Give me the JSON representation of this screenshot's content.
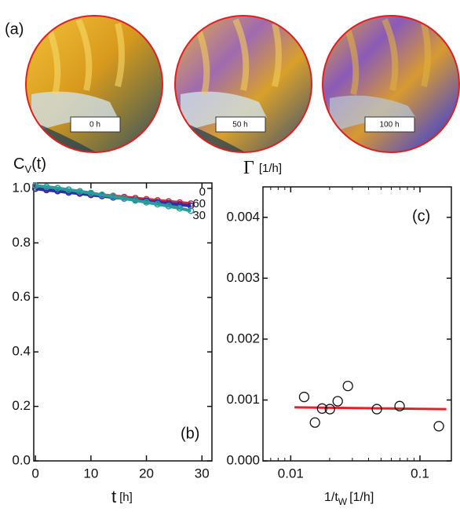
{
  "images": {
    "panel_label": "(a)",
    "captions": [
      "0 h",
      "50 h",
      "100 h"
    ]
  },
  "chart_data": [
    {
      "type": "line",
      "panel_label": "(b)",
      "ylabel": {
        "main": "C",
        "sub": "V",
        "rest": "(t)"
      },
      "xlabel": {
        "main": "t",
        "unit": "[h]"
      },
      "x": [
        0,
        2,
        4,
        6,
        8,
        10,
        12,
        14,
        16,
        18,
        20,
        22,
        24,
        26,
        28
      ],
      "series": [
        {
          "name": "0",
          "color": "#d7263d",
          "values": [
            1.0,
            0.996,
            0.992,
            0.988,
            0.984,
            0.98,
            0.976,
            0.972,
            0.968,
            0.964,
            0.96,
            0.956,
            0.952,
            0.948,
            0.944
          ]
        },
        {
          "name": "60",
          "color": "#2b2fa8",
          "values": [
            0.999,
            0.994,
            0.99,
            0.985,
            0.981,
            0.976,
            0.972,
            0.967,
            0.963,
            0.958,
            0.954,
            0.949,
            0.945,
            0.94,
            0.936
          ]
        },
        {
          "name": "30",
          "color": "#2a9d9a",
          "values": [
            1.01,
            1.006,
            1.001,
            0.995,
            0.989,
            0.983,
            0.976,
            0.97,
            0.963,
            0.956,
            0.949,
            0.942,
            0.935,
            0.927,
            0.918
          ]
        }
      ],
      "xlim": [
        -0.3,
        31.8
      ],
      "xticks": [
        0,
        10,
        20,
        30
      ],
      "ylim": [
        0,
        1.02
      ],
      "yticks": [
        {
          "value": 0,
          "label": "0.0"
        },
        0.2,
        0.4,
        0.6,
        0.8,
        {
          "value": 1,
          "label": "1.0"
        }
      ]
    },
    {
      "type": "scatter",
      "panel_label": "(c)",
      "ylabel": {
        "main": "Γ",
        "unit": "[1/h]"
      },
      "xlabel": {
        "main": "1/t",
        "sub": "W",
        "unit": "[1/h]"
      },
      "x_scale": "log",
      "x": [
        0.0127,
        0.0154,
        0.0175,
        0.0201,
        0.0231,
        0.0277,
        0.0464,
        0.0696,
        0.14
      ],
      "values": [
        0.00105,
        0.00063,
        0.00086,
        0.00085,
        0.00098,
        0.00123,
        0.00085,
        0.0009,
        0.00057
      ],
      "color": "#111111",
      "fit": {
        "x": [
          0.0107,
          0.16
        ],
        "values": [
          0.00088,
          0.00085
        ],
        "color": "#e8202a"
      },
      "xlim": [
        0.0061,
        0.175
      ],
      "xticks": [
        0.01,
        0.1
      ],
      "ylim": [
        0,
        0.0045
      ],
      "yticks": [
        {
          "value": 0,
          "label": "0.000"
        },
        0.001,
        0.002,
        0.003,
        0.004
      ]
    }
  ]
}
